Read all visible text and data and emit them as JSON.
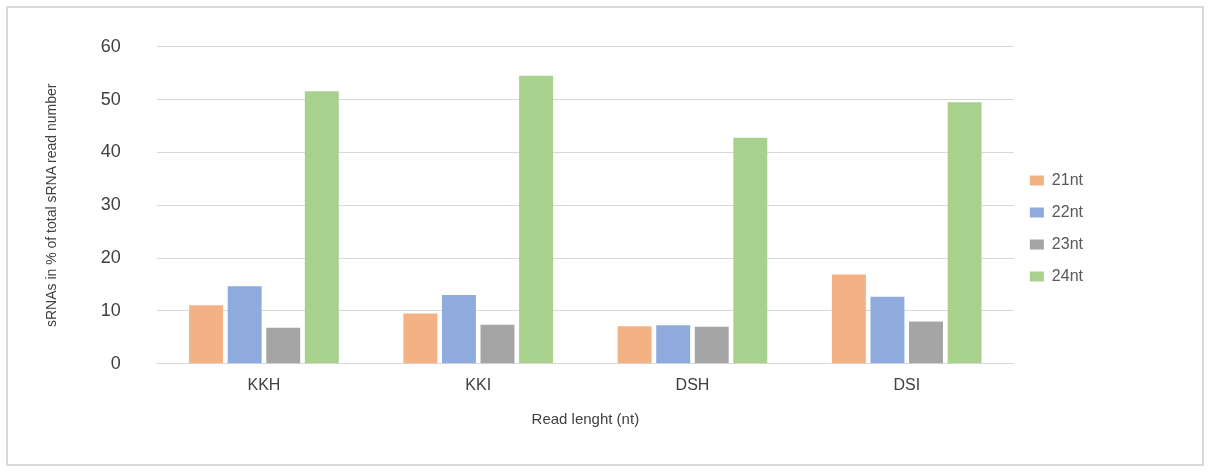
{
  "chart_data": {
    "type": "bar",
    "xlabel": "Read lenght (nt)",
    "ylabel": "sRNAs in % of total sRNA read number",
    "categories": [
      "KKH",
      "KKI",
      "DSH",
      "DSI"
    ],
    "series": [
      {
        "name": "21nt",
        "color": "#f4b183",
        "values": [
          11.1,
          9.5,
          7.1,
          16.9
        ]
      },
      {
        "name": "22nt",
        "color": "#8faadc",
        "values": [
          14.7,
          13.0,
          7.3,
          12.7
        ]
      },
      {
        "name": "23nt",
        "color": "#a5a5a5",
        "values": [
          6.8,
          7.4,
          7.0,
          8.0
        ]
      },
      {
        "name": "24nt",
        "color": "#a9d18e",
        "values": [
          51.6,
          54.5,
          42.8,
          49.5
        ]
      }
    ],
    "ylim": [
      0,
      60
    ],
    "yticks": [
      0,
      10,
      20,
      30,
      40,
      50,
      60
    ],
    "grid": "y",
    "legend": "right"
  }
}
